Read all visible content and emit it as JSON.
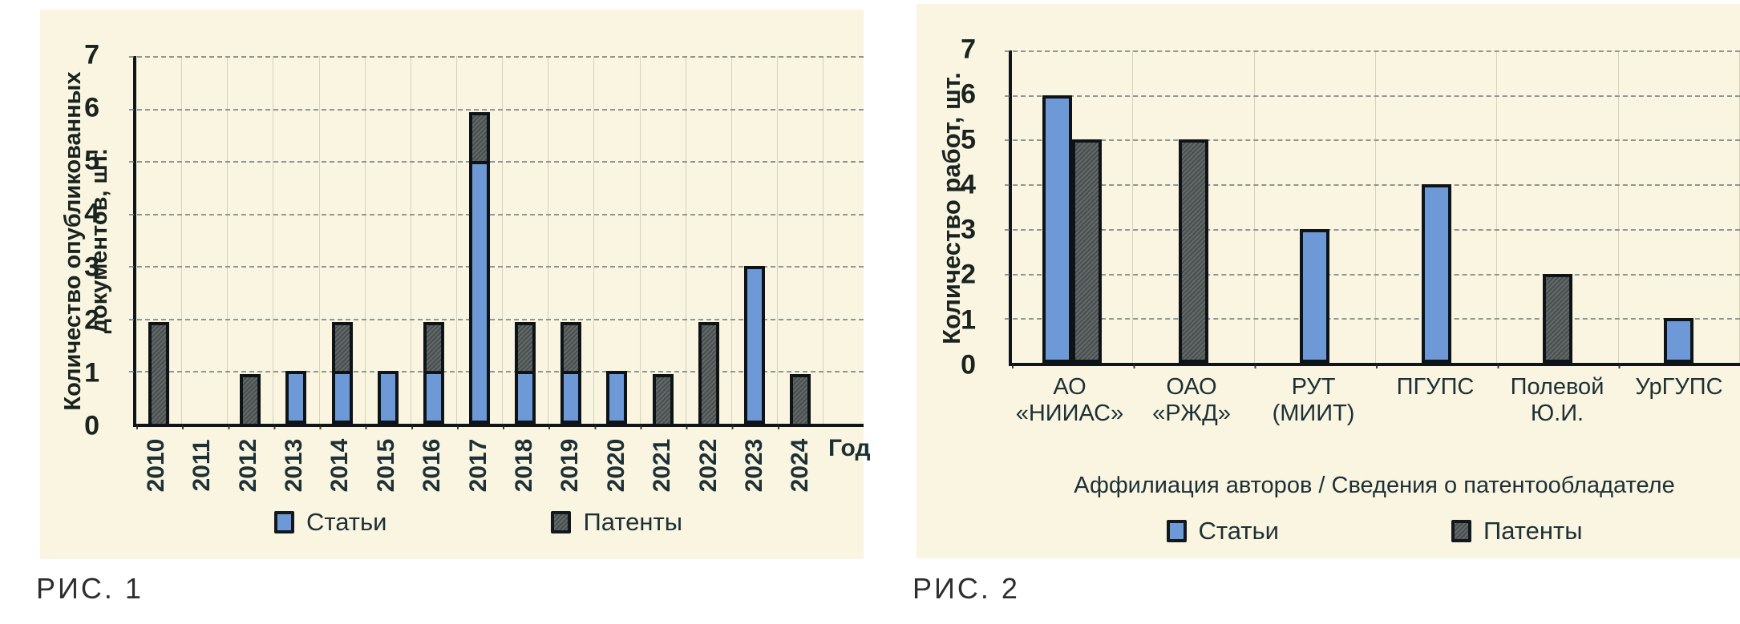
{
  "y_axis_ticks": [
    "7",
    "6",
    "5",
    "4",
    "3",
    "2",
    "1",
    "0"
  ],
  "legend": {
    "articles_label": "Статьи",
    "patents_label": "Патенты"
  },
  "figures": [
    {
      "caption": "РИС. 1",
      "y_title_lines": [
        "Количество опубликованных",
        "документов, шт."
      ],
      "x_axis_title": "Год"
    },
    {
      "caption": "РИС. 2",
      "y_title_lines": [
        "Количество работ, шт."
      ],
      "x_axis_title": "Аффилиация авторов / Сведения о патентообладателе"
    }
  ],
  "colors": {
    "articles_blue": "#6d9ad6",
    "patents_gray": "#515857",
    "panel_background": "#f9f5e0",
    "axis": "#10151a",
    "gridline": "#6c767a",
    "text": "#1d3036"
  },
  "chart_data": [
    {
      "type": "bar",
      "subtype": "stacked",
      "title": "",
      "xlabel": "Год",
      "ylabel": "Количество опубликованных документов, шт.",
      "ylim": [
        0,
        7
      ],
      "grid": true,
      "legend_position": "bottom",
      "categories": [
        "2010",
        "2011",
        "2012",
        "2013",
        "2014",
        "2015",
        "2016",
        "2017",
        "2018",
        "2019",
        "2020",
        "2021",
        "2022",
        "2023",
        "2024"
      ],
      "series": [
        {
          "name": "Статьи",
          "color": "#6d9ad6",
          "values": [
            0,
            0,
            0,
            1,
            1,
            1,
            1,
            5,
            1,
            1,
            1,
            0,
            0,
            3,
            0
          ]
        },
        {
          "name": "Патенты",
          "color": "#515857",
          "values": [
            2,
            0,
            1,
            0,
            1,
            0,
            1,
            1,
            1,
            1,
            0,
            1,
            2,
            0,
            1
          ]
        }
      ]
    },
    {
      "type": "bar",
      "subtype": "grouped",
      "title": "",
      "xlabel": "Аффилиация авторов / Сведения о патентообладателе",
      "ylabel": "Количество работ, шт.",
      "ylim": [
        0,
        7
      ],
      "grid": true,
      "legend_position": "bottom",
      "categories": [
        "АО «НИИАС»",
        "ОАО «РЖД»",
        "РУТ (МИИТ)",
        "ПГУПС",
        "Полевой Ю.И.",
        "УрГУПС"
      ],
      "categories_display": [
        [
          "АО",
          "«НИИАС»"
        ],
        [
          "ОАО",
          "«РЖД»"
        ],
        [
          "РУТ",
          "(МИИТ)"
        ],
        [
          "ПГУПС",
          ""
        ],
        [
          "Полевой",
          "Ю.И."
        ],
        [
          "УрГУПС",
          ""
        ]
      ],
      "series": [
        {
          "name": "Статьи",
          "color": "#6d9ad6",
          "values": [
            6,
            0,
            3,
            4,
            0,
            1
          ]
        },
        {
          "name": "Патенты",
          "color": "#515857",
          "values": [
            5,
            5,
            0,
            0,
            2,
            0
          ]
        }
      ]
    }
  ]
}
